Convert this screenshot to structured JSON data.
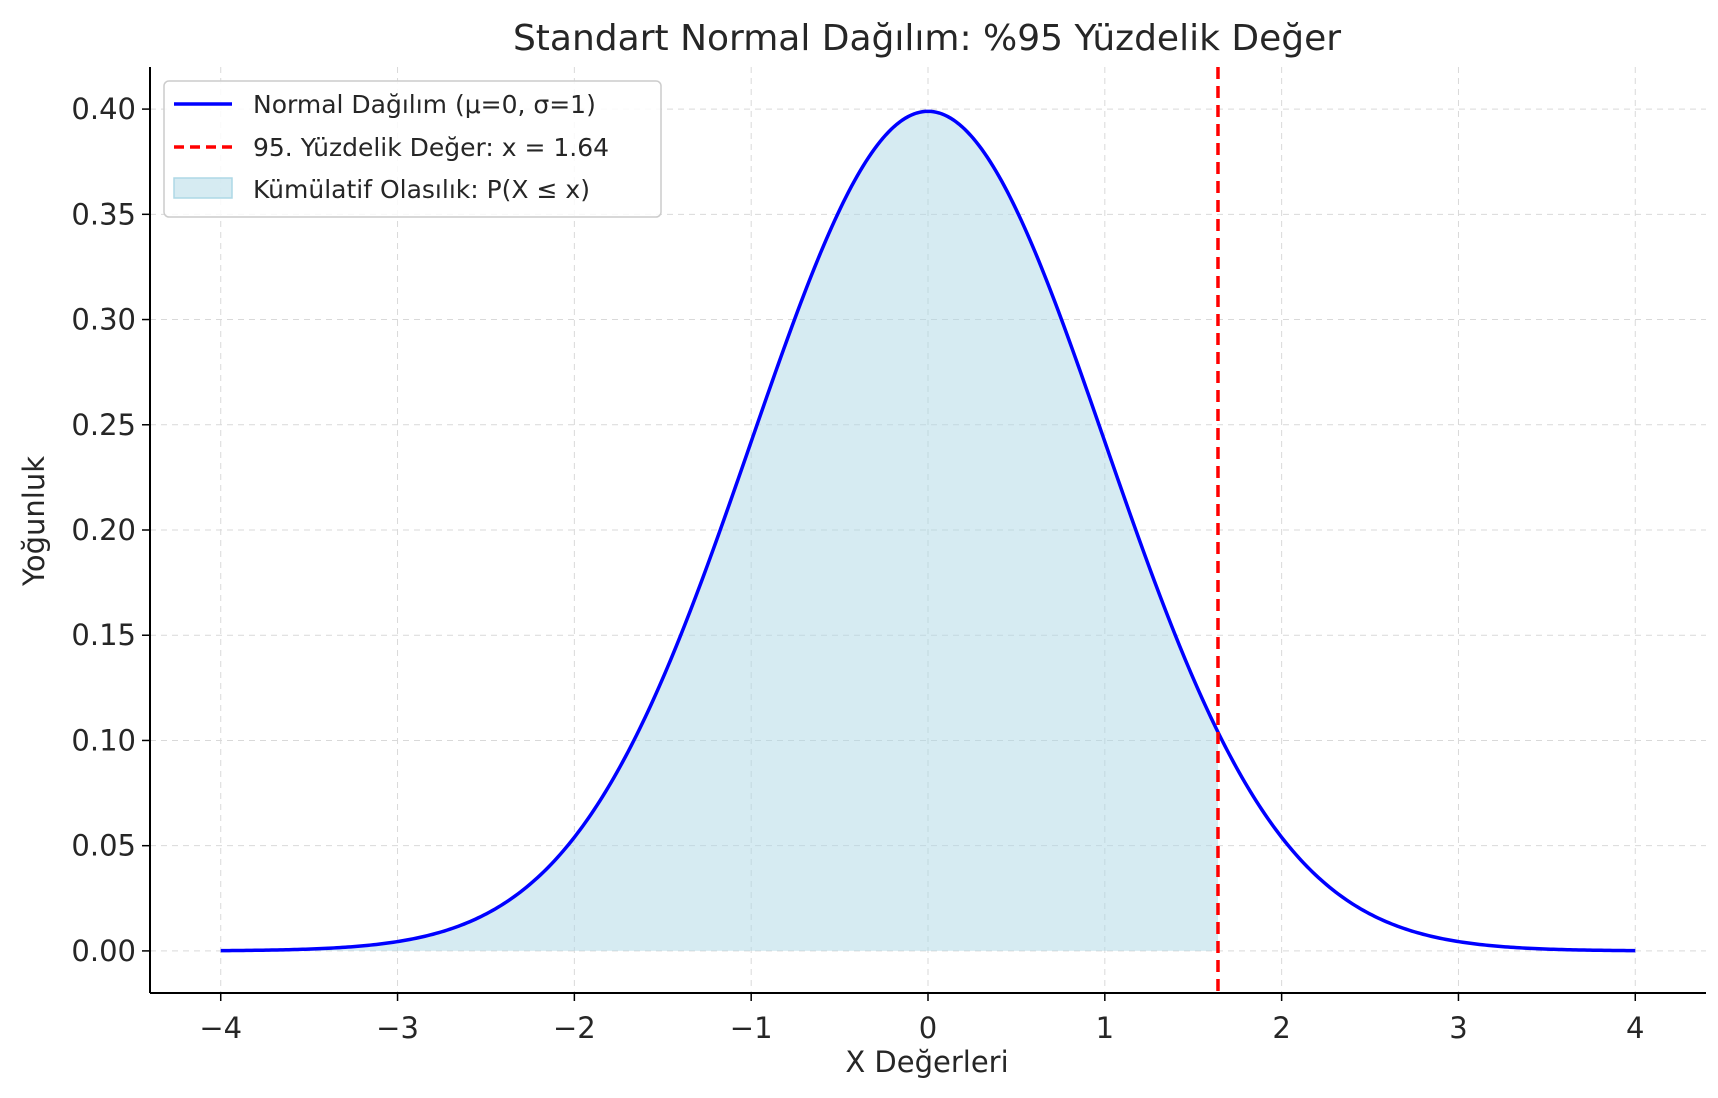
{
  "chart_data": {
    "type": "line",
    "title": "Standart Normal Dağılım: %95 Yüzdelik Değer",
    "xlabel": "X Değerleri",
    "ylabel": "Yoğunluk",
    "xlim": [
      -4.4,
      4.4
    ],
    "ylim": [
      -0.02,
      0.42
    ],
    "xticks": [
      -4,
      -3,
      -2,
      -1,
      0,
      1,
      2,
      3,
      4
    ],
    "xtick_labels": [
      "−4",
      "−3",
      "−2",
      "−1",
      "0",
      "1",
      "2",
      "3",
      "4"
    ],
    "yticks": [
      0.0,
      0.05,
      0.1,
      0.15,
      0.2,
      0.25,
      0.3,
      0.35,
      0.4
    ],
    "ytick_labels": [
      "0.00",
      "0.05",
      "0.10",
      "0.15",
      "0.20",
      "0.25",
      "0.30",
      "0.35",
      "0.40"
    ],
    "grid": true,
    "legend_position": "top-left",
    "series": [
      {
        "name": "Normal Dağılım (μ=0, σ=1)",
        "kind": "line",
        "color": "#0000ff",
        "x": [
          -4,
          -3.5,
          -3,
          -2.5,
          -2,
          -1.5,
          -1,
          -0.5,
          0,
          0.5,
          1,
          1.5,
          1.64,
          2,
          2.5,
          3,
          3.5,
          4
        ],
        "y": [
          0.0001,
          0.0009,
          0.0044,
          0.0175,
          0.054,
          0.1295,
          0.242,
          0.3521,
          0.3989,
          0.3521,
          0.242,
          0.1295,
          0.104,
          0.054,
          0.0175,
          0.0044,
          0.0009,
          0.0001
        ]
      },
      {
        "name": "95. Yüzdelik Değer: x = 1.64",
        "kind": "vline",
        "color": "#ff0000",
        "x": 1.64
      },
      {
        "name": "Kümülatif Olasılık: P(X ≤ x)",
        "kind": "area",
        "color": "#add8e6",
        "x_from": -4,
        "x_to": 1.64
      }
    ]
  }
}
